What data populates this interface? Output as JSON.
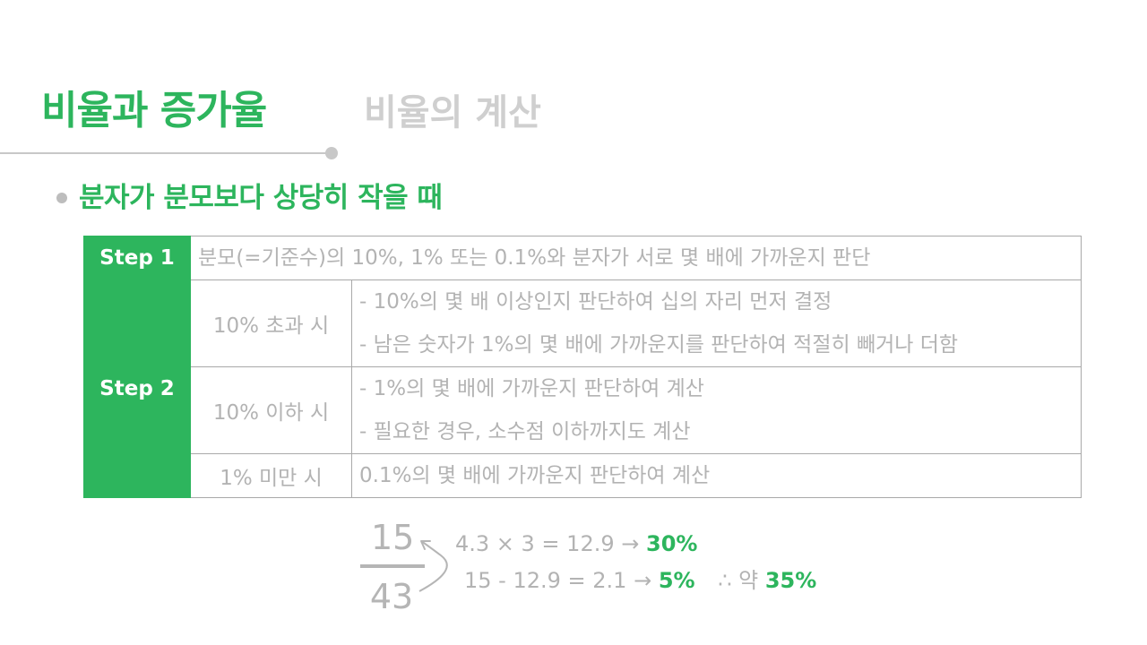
{
  "header": {
    "title": "비율과 증가율",
    "subtitle": "비율의 계산"
  },
  "section": {
    "heading": "분자가 분모보다 상당히 작을 때"
  },
  "table": {
    "step1": {
      "label": "Step 1",
      "text": "분모(=기준수)의 10%, 1% 또는 0.1%와 분자가 서로 몇 배에 가까운지 판단"
    },
    "step2": {
      "label": "Step 2",
      "rows": [
        {
          "condition": "10% 초과 시",
          "lines": [
            "- 10%의 몇 배 이상인지 판단하여 십의 자리 먼저 결정",
            "- 남은 숫자가 1%의 몇 배에 가까운지를 판단하여 적절히 빼거나 더함"
          ]
        },
        {
          "condition": "10% 이하 시",
          "lines": [
            "- 1%의 몇 배에 가까운지 판단하여 계산",
            "- 필요한 경우, 소수점 이하까지도 계산"
          ]
        },
        {
          "condition": "1% 미만 시",
          "lines": [
            "0.1%의 몇 배에 가까운지 판단하여 계산"
          ]
        }
      ]
    }
  },
  "example": {
    "numerator": "15",
    "denominator": "43",
    "line1": {
      "expr": "4.3 × 3 = 12.9",
      "arrow": "→",
      "result": "30%"
    },
    "line2": {
      "expr": "15 - 12.9 = 2.1",
      "arrow": "→",
      "result": "5%",
      "therefore": "∴ 약",
      "total": "35%"
    }
  },
  "colors": {
    "accent": "#2db55d",
    "muted_text": "#b3b3b3",
    "border": "#a9a9a9"
  }
}
